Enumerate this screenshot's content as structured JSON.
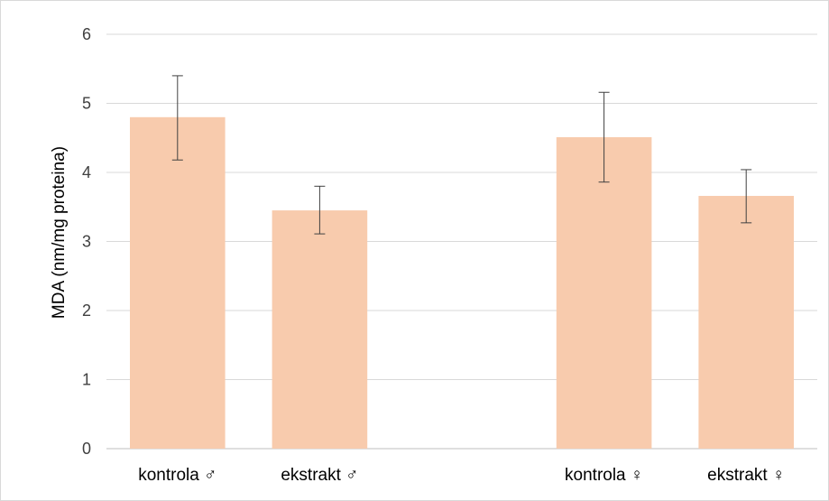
{
  "chart_data": {
    "type": "bar",
    "title": "",
    "xlabel": "",
    "ylabel": "MDA (nm/mg proteina)",
    "ylim": [
      0,
      6
    ],
    "yticks": [
      0,
      1,
      2,
      3,
      4,
      5,
      6
    ],
    "grid": true,
    "legend": "none",
    "categories": [
      "kontrola ♂",
      "ekstrakt ♂",
      "",
      "kontrola ♀",
      "ekstrakt ♀"
    ],
    "series": [
      {
        "values": [
          4.8,
          3.45,
          null,
          4.51,
          3.66
        ],
        "error_low": [
          4.18,
          3.11,
          null,
          3.86,
          3.27
        ],
        "error_high": [
          5.4,
          3.8,
          null,
          5.16,
          4.04
        ],
        "color": "#f8cbad"
      }
    ],
    "colors": {
      "bar": "#f8cbad",
      "error_bar": "#404040",
      "grid": "#d9d9d9",
      "axis": "#bfbfbf"
    }
  }
}
